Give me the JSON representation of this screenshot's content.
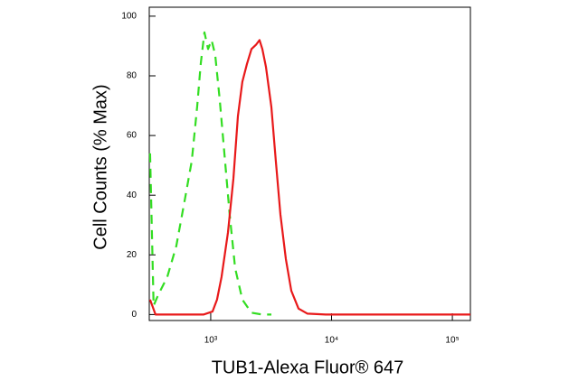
{
  "chart_data": {
    "type": "line",
    "x_label": "TUB1-Alexa Fluor® 647",
    "y_label": "Cell Counts (% Max)",
    "xscale": "log",
    "xlim": [
      310,
      141000
    ],
    "xticks": [
      {
        "value": 1000,
        "label": "10³"
      },
      {
        "value": 10000,
        "label": "10⁴"
      },
      {
        "value": 100000,
        "label": "10⁵"
      }
    ],
    "ylim": [
      -2,
      103
    ],
    "yticks": [
      0,
      20,
      40,
      60,
      80,
      100
    ],
    "series": [
      {
        "color": "#33dd22",
        "dash": true,
        "x": [
          315,
          337,
          368,
          437,
          519,
          617,
          697,
          772,
          827,
          887,
          950,
          1017,
          1089,
          1188,
          1295,
          1436,
          1593,
          1828,
          2173,
          2673,
          3176
        ],
        "values": [
          54,
          3,
          6.6,
          12.6,
          23,
          39.5,
          51.5,
          69.5,
          84,
          94.6,
          89,
          92,
          87,
          72,
          54.5,
          33.5,
          15.6,
          5,
          0.6,
          0,
          0
        ]
      },
      {
        "color": "#e8191a",
        "dash": false,
        "x": [
          315,
          349,
          871,
          1035,
          1128,
          1230,
          1388,
          1540,
          1679,
          1828,
          1995,
          2173,
          2371,
          2535,
          2673,
          2864,
          3176,
          3459,
          3775,
          4188,
          4645,
          5333,
          6324,
          8933,
          141000
        ],
        "values": [
          5,
          0,
          0,
          1,
          5,
          12.6,
          27.5,
          45.5,
          66.5,
          78,
          84,
          89,
          90.4,
          92,
          89,
          83,
          69.5,
          51.5,
          33.5,
          18.6,
          8,
          2,
          0.3,
          0,
          0
        ]
      }
    ]
  }
}
